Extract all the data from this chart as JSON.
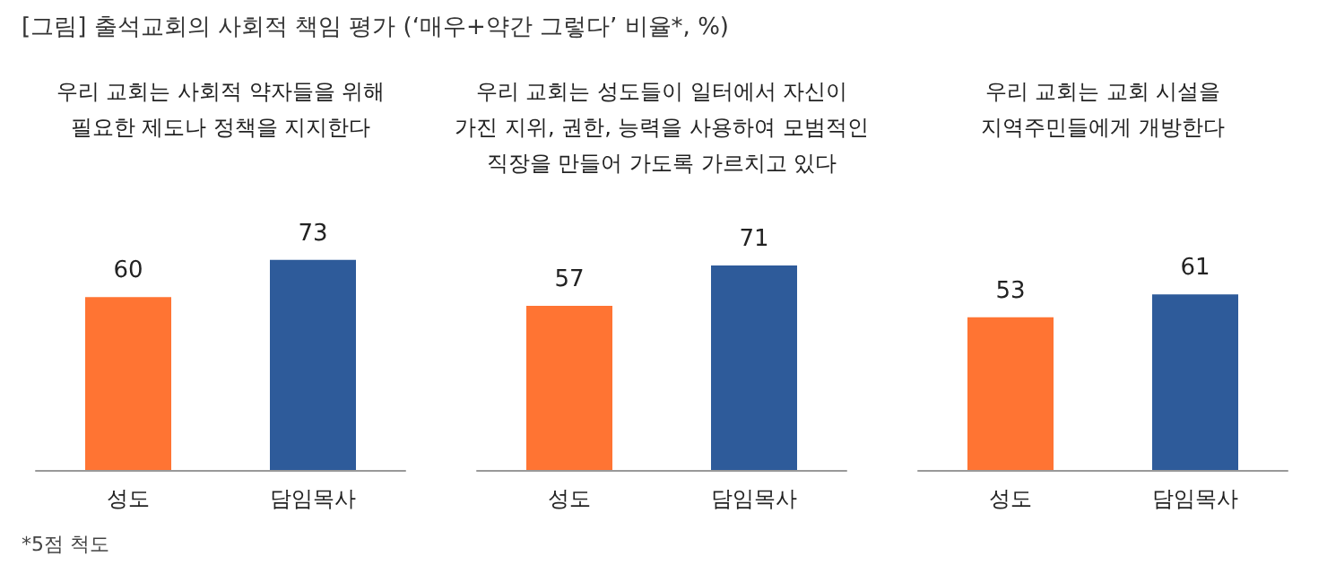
{
  "chart_data": [
    {
      "type": "bar",
      "title": "우리 교회는 사회적 약자들을 위해\n필요한 제도나 정책을 지지한다",
      "categories": [
        "성도",
        "담임목사"
      ],
      "values": [
        60,
        73
      ],
      "colors": [
        "#ff7433",
        "#2e5b9a"
      ],
      "data_labels": true,
      "annotations": [
        "[그림] 출석교회의 사회적 책임 평가 (‘매우+약간 그렇다’ 비율*, %)",
        "*5점 척도"
      ]
    },
    {
      "type": "bar",
      "title": "우리 교회는 성도들이 일터에서 자신이\n가진 지위, 권한, 능력을 사용하여 모범적인\n직장을 만들어 가도록 가르치고 있다",
      "categories": [
        "성도",
        "담임목사"
      ],
      "values": [
        57,
        71
      ],
      "colors": [
        "#ff7433",
        "#2e5b9a"
      ],
      "data_labels": true
    },
    {
      "type": "bar",
      "title": "우리 교회는 교회 시설을\n지역주민들에게 개방한다",
      "categories": [
        "성도",
        "담임목사"
      ],
      "values": [
        53,
        61
      ],
      "colors": [
        "#ff7433",
        "#2e5b9a"
      ],
      "data_labels": true
    }
  ]
}
